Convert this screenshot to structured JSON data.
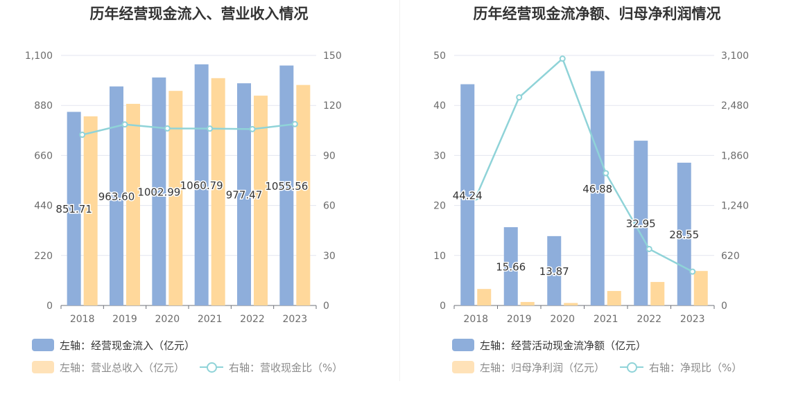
{
  "chart_data": [
    {
      "type": "bar",
      "title": "历年经营现金流入、营业收入情况",
      "categories": [
        "2018",
        "2019",
        "2020",
        "2021",
        "2022",
        "2023"
      ],
      "left_axis": {
        "min": 0,
        "max": 1100,
        "ticks": [
          "0",
          "220",
          "440",
          "660",
          "880",
          "1,100"
        ],
        "tick_values": [
          0,
          220,
          440,
          660,
          880,
          1100
        ]
      },
      "right_axis": {
        "min": 0,
        "max": 150,
        "ticks": [
          "0",
          "30",
          "60",
          "90",
          "120",
          "150"
        ],
        "tick_values": [
          0,
          30,
          60,
          90,
          120,
          150
        ]
      },
      "series": [
        {
          "name": "左轴：经营现金流入（亿元）",
          "kind": "bar",
          "axis": "left",
          "color": "#8eaedb",
          "values": [
            851.71,
            963.6,
            1002.99,
            1060.79,
            977.47,
            1055.56
          ],
          "labels": [
            "851.71",
            "963.60",
            "1002.99",
            "1060.79",
            "977.47",
            "1055.56"
          ]
        },
        {
          "name": "左轴：营业总收入（亿元）",
          "kind": "bar",
          "axis": "left",
          "color": "#ffd89b",
          "values": [
            832,
            887,
            944,
            1000,
            923,
            970
          ]
        },
        {
          "name": "右轴：营收现金比（%）",
          "kind": "line",
          "axis": "right",
          "color": "#8fd3d8",
          "values": [
            102.4,
            108.6,
            106.2,
            106.1,
            105.8,
            108.8
          ]
        }
      ],
      "grid": true,
      "legend_position": "bottom-left"
    },
    {
      "type": "bar",
      "title": "历年经营现金流净额、归母净利润情况",
      "categories": [
        "2018",
        "2019",
        "2020",
        "2021",
        "2022",
        "2023"
      ],
      "left_axis": {
        "min": 0,
        "max": 50,
        "ticks": [
          "0",
          "10",
          "20",
          "30",
          "40",
          "50"
        ],
        "tick_values": [
          0,
          10,
          20,
          30,
          40,
          50
        ]
      },
      "right_axis": {
        "min": 0,
        "max": 3100,
        "ticks": [
          "0",
          "620",
          "1,240",
          "1,860",
          "2,480",
          "3,100"
        ],
        "tick_values": [
          0,
          620,
          1240,
          1860,
          2480,
          3100
        ]
      },
      "series": [
        {
          "name": "左轴：经营活动现金流净额（亿元）",
          "kind": "bar",
          "axis": "left",
          "color": "#8eaedb",
          "values": [
            44.24,
            15.66,
            13.87,
            46.88,
            32.95,
            28.55
          ],
          "labels": [
            "44.24",
            "15.66",
            "13.87",
            "46.88",
            "32.95",
            "28.55"
          ]
        },
        {
          "name": "左轴：归母净利润（亿元）",
          "kind": "bar",
          "axis": "left",
          "color": "#ffd89b",
          "values": [
            3.3,
            0.7,
            0.5,
            2.9,
            4.7,
            6.9
          ]
        },
        {
          "name": "右轴：净现比（%）",
          "kind": "line",
          "axis": "right",
          "color": "#8fd3d8",
          "values": [
            1340,
            2580,
            3060,
            1640,
            700,
            420
          ]
        }
      ],
      "grid": true,
      "legend_position": "bottom-left"
    }
  ]
}
